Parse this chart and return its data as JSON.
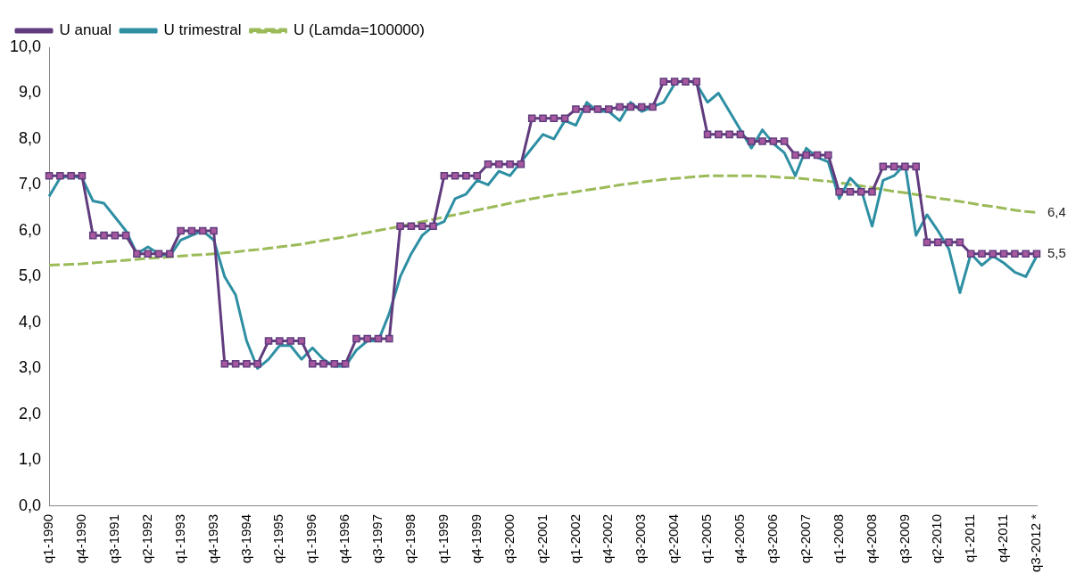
{
  "chart_data": {
    "type": "line",
    "categories": [
      "q1-1990",
      null,
      null,
      "q4-1990",
      null,
      null,
      "q3-1991",
      null,
      null,
      "q2-1992",
      null,
      null,
      "q1-1993",
      null,
      null,
      "q4-1993",
      null,
      null,
      "q3-1994",
      null,
      null,
      "q2-1995",
      null,
      null,
      "q1-1996",
      null,
      null,
      "q4-1996",
      null,
      null,
      "q3-1997",
      null,
      null,
      "q2-1998",
      null,
      null,
      "q1-1999",
      null,
      null,
      "q4-1999",
      null,
      null,
      "q3-2000",
      null,
      null,
      "q2-2001",
      null,
      null,
      "q1-2002",
      null,
      null,
      "q4-2002",
      null,
      null,
      "q3-2003",
      null,
      null,
      "q2-2004",
      null,
      null,
      "q1-2005",
      null,
      null,
      "q4-2005",
      null,
      null,
      "q3-2006",
      null,
      null,
      "q2-2007",
      null,
      null,
      "q1-2008",
      null,
      null,
      "q4-2008",
      null,
      null,
      "q3-2009",
      null,
      null,
      "q2-2010",
      null,
      null,
      "q1-2011",
      null,
      null,
      "q4-2011",
      null,
      null,
      "q3-2012 *"
    ],
    "series": [
      {
        "name": "U anual",
        "color": "#603c7e",
        "marker": "square",
        "line_style": "solid",
        "values": [
          7.2,
          7.2,
          7.2,
          7.2,
          5.9,
          5.9,
          5.9,
          5.9,
          5.5,
          5.5,
          5.5,
          5.5,
          6.0,
          6.0,
          6.0,
          6.0,
          3.1,
          3.1,
          3.1,
          3.1,
          3.6,
          3.6,
          3.6,
          3.6,
          3.1,
          3.1,
          3.1,
          3.1,
          3.65,
          3.65,
          3.65,
          3.65,
          6.1,
          6.1,
          6.1,
          6.1,
          7.2,
          7.2,
          7.2,
          7.2,
          7.45,
          7.45,
          7.45,
          7.45,
          8.45,
          8.45,
          8.45,
          8.45,
          8.65,
          8.65,
          8.65,
          8.65,
          8.7,
          8.7,
          8.7,
          8.7,
          9.25,
          9.25,
          9.25,
          9.25,
          8.1,
          8.1,
          8.1,
          8.1,
          7.95,
          7.95,
          7.95,
          7.95,
          7.65,
          7.65,
          7.65,
          7.65,
          6.85,
          6.85,
          6.85,
          6.85,
          7.4,
          7.4,
          7.4,
          7.4,
          5.75,
          5.75,
          5.75,
          5.75,
          5.5,
          5.5,
          5.5,
          5.5,
          5.5,
          5.5,
          5.5
        ]
      },
      {
        "name": "U trimestral",
        "color": "#2e8fa3",
        "marker": "none",
        "line_style": "solid",
        "values": [
          6.75,
          7.15,
          7.2,
          7.15,
          6.65,
          6.6,
          6.3,
          6.0,
          5.5,
          5.65,
          5.5,
          5.45,
          5.8,
          5.9,
          6.0,
          5.8,
          5.0,
          4.6,
          3.6,
          3.0,
          3.2,
          3.5,
          3.5,
          3.2,
          3.45,
          3.2,
          3.05,
          3.05,
          3.4,
          3.6,
          3.6,
          4.2,
          5.0,
          5.5,
          5.9,
          6.1,
          6.2,
          6.7,
          6.8,
          7.1,
          7.0,
          7.3,
          7.2,
          7.5,
          7.8,
          8.1,
          8.0,
          8.4,
          8.3,
          8.8,
          8.6,
          8.6,
          8.4,
          8.8,
          8.6,
          8.7,
          8.8,
          9.2,
          9.3,
          9.2,
          8.8,
          9.0,
          8.6,
          8.2,
          7.8,
          8.2,
          7.9,
          7.7,
          7.2,
          7.8,
          7.6,
          7.5,
          6.7,
          7.15,
          6.9,
          6.1,
          7.1,
          7.2,
          7.45,
          5.9,
          6.35,
          6.0,
          5.6,
          4.65,
          5.5,
          5.25,
          5.45,
          5.3,
          5.1,
          5.0,
          5.45
        ]
      },
      {
        "name": "U (Lamda=100000)",
        "color": "#9bbb59",
        "marker": "none",
        "line_style": "dashed",
        "values": [
          5.25,
          5.26,
          5.27,
          5.28,
          5.3,
          5.32,
          5.34,
          5.36,
          5.38,
          5.4,
          5.41,
          5.43,
          5.45,
          5.47,
          5.48,
          5.5,
          5.52,
          5.54,
          5.57,
          5.59,
          5.62,
          5.65,
          5.68,
          5.71,
          5.75,
          5.79,
          5.83,
          5.87,
          5.92,
          5.96,
          6.01,
          6.05,
          6.1,
          6.15,
          6.2,
          6.25,
          6.3,
          6.35,
          6.4,
          6.45,
          6.5,
          6.55,
          6.6,
          6.65,
          6.7,
          6.74,
          6.78,
          6.81,
          6.85,
          6.89,
          6.92,
          6.96,
          7.0,
          7.03,
          7.06,
          7.09,
          7.12,
          7.14,
          7.16,
          7.18,
          7.2,
          7.2,
          7.2,
          7.2,
          7.2,
          7.19,
          7.18,
          7.16,
          7.15,
          7.13,
          7.1,
          7.08,
          7.05,
          7.01,
          6.98,
          6.94,
          6.9,
          6.86,
          6.83,
          6.79,
          6.75,
          6.71,
          6.68,
          6.64,
          6.6,
          6.56,
          6.53,
          6.49,
          6.45,
          6.42,
          6.4
        ]
      }
    ],
    "ylim": [
      0,
      10
    ],
    "yticks": [
      {
        "value": 0,
        "label": "0,0"
      },
      {
        "value": 1,
        "label": "1,0"
      },
      {
        "value": 2,
        "label": "2,0"
      },
      {
        "value": 3,
        "label": "3,0"
      },
      {
        "value": 4,
        "label": "4,0"
      },
      {
        "value": 5,
        "label": "5,0"
      },
      {
        "value": 6,
        "label": "6,0"
      },
      {
        "value": 7,
        "label": "7,0"
      },
      {
        "value": 8,
        "label": "8,0"
      },
      {
        "value": 9,
        "label": "9,0"
      },
      {
        "value": 10,
        "label": "10,0"
      }
    ],
    "annotations": [
      {
        "text": "6,4",
        "x": "q3-2012 *",
        "y": 6.4
      },
      {
        "text": "5,5",
        "x": "q3-2012 *",
        "y": 5.5
      }
    ],
    "grid": false,
    "legend": "top left"
  }
}
